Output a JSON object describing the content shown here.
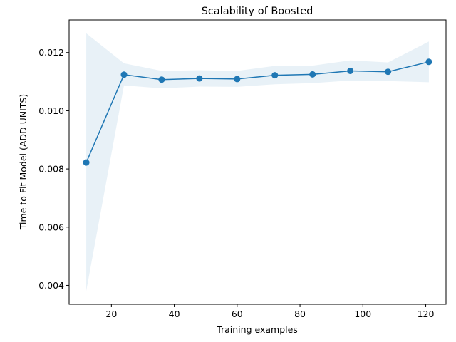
{
  "chart_data": {
    "type": "line",
    "title": "Scalability of Boosted",
    "xlabel": "Training examples",
    "ylabel": "Time to Fit Model (ADD UNITS)",
    "xlim": [
      6.55,
      126.45
    ],
    "ylim": [
      0.00335,
      0.01312
    ],
    "xticks": [
      20,
      40,
      60,
      80,
      100,
      120
    ],
    "xtick_labels": [
      "20",
      "40",
      "60",
      "80",
      "100",
      "120"
    ],
    "yticks": [
      0.004,
      0.006,
      0.008,
      0.01,
      0.012
    ],
    "ytick_labels": [
      "0.004",
      "0.006",
      "0.008",
      "0.010",
      "0.012"
    ],
    "grid": false,
    "x": [
      12,
      24,
      36,
      48,
      60,
      72,
      84,
      96,
      108,
      121
    ],
    "series": [
      {
        "values": [
          0.00822,
          0.01124,
          0.01107,
          0.01111,
          0.01109,
          0.01122,
          0.01125,
          0.01137,
          0.01134,
          0.01168
        ],
        "upper": [
          0.01266,
          0.01163,
          0.01137,
          0.01139,
          0.01137,
          0.01154,
          0.01155,
          0.01173,
          0.01166,
          0.01238
        ],
        "lower": [
          0.00381,
          0.01087,
          0.01077,
          0.01083,
          0.01082,
          0.01091,
          0.01095,
          0.01104,
          0.01102,
          0.01098
        ]
      }
    ],
    "colors": {
      "line": "#1f77b4",
      "band": "#1f77b4",
      "axes": "#000000",
      "background": "#ffffff"
    }
  }
}
